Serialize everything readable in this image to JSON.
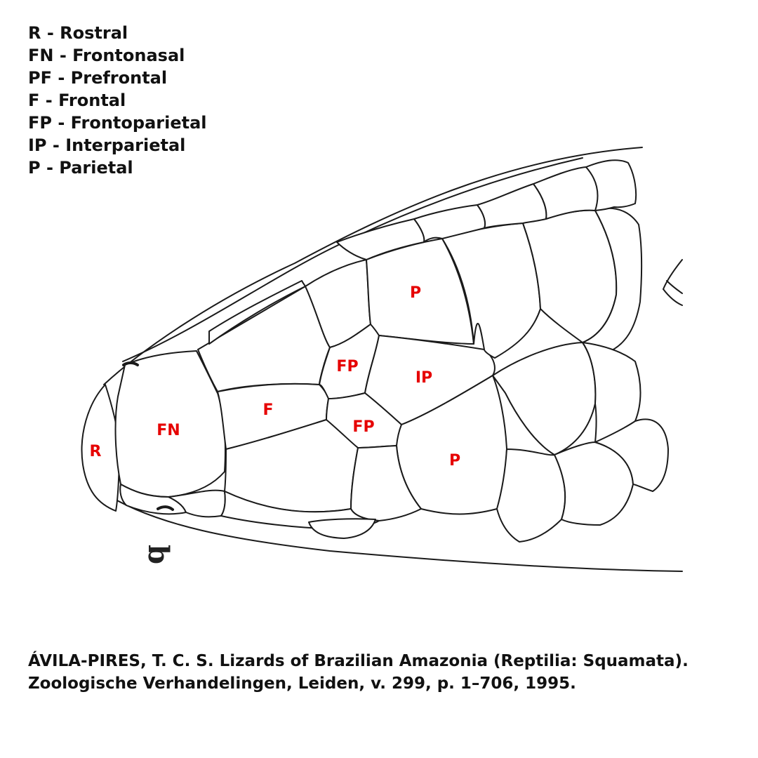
{
  "legend": {
    "items": [
      {
        "abbr": "R",
        "name": "Rostral",
        "text": "R - Rostral"
      },
      {
        "abbr": "FN",
        "name": "Frontonasal",
        "text": "FN - Frontonasal"
      },
      {
        "abbr": "PF",
        "name": "Prefrontal",
        "text": "PF - Prefrontal"
      },
      {
        "abbr": "F",
        "name": "Frontal",
        "text": "F - Frontal"
      },
      {
        "abbr": "FP",
        "name": "Frontoparietal",
        "text": "FP - Frontoparietal"
      },
      {
        "abbr": "IP",
        "name": "Interparietal",
        "text": "IP - Interparietal"
      },
      {
        "abbr": "P",
        "name": "Parietal",
        "text": "P - Parietal"
      }
    ]
  },
  "figure": {
    "panel_letter": "b",
    "labels": {
      "rostral": "R",
      "frontonasal": "FN",
      "frontal": "F",
      "frontoparietal_upper": "FP",
      "frontoparietal_lower": "FP",
      "interparietal": "IP",
      "parietal_upper": "P",
      "parietal_lower": "P"
    },
    "label_color": "#e60000",
    "line_color": "#1a1a1a"
  },
  "citation": {
    "line1": "ÁVILA-PIRES, T. C. S. Lizards of Brazilian Amazonia (Reptilia: Squamata).",
    "line2": "Zoologische Verhandelingen, Leiden, v. 299, p. 1–706, 1995."
  }
}
